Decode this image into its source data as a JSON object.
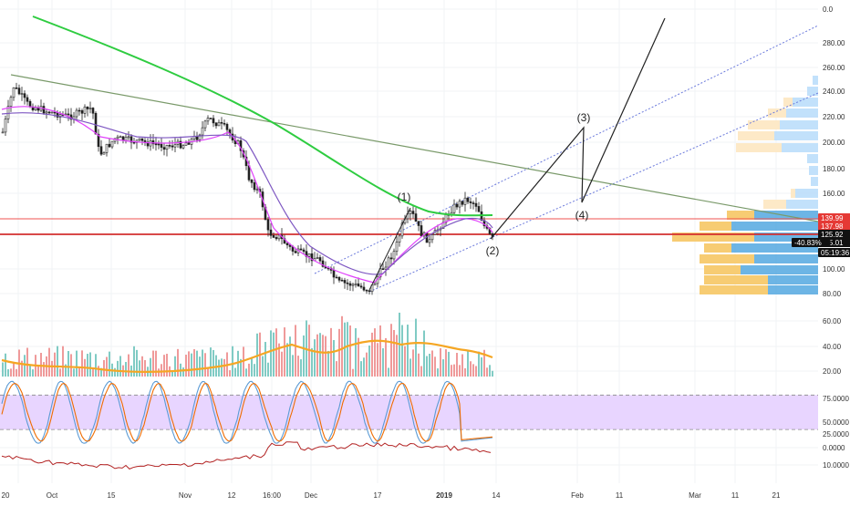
{
  "chart_data": {
    "type": "candlestick",
    "price_axis": {
      "ticks": [
        "0.0",
        "280.00",
        "260.00",
        "240.00",
        "220.00",
        "200.00",
        "180.00",
        "160.00",
        "100.00",
        "80.00"
      ],
      "ylim": [
        80,
        295
      ]
    },
    "volume_axis": {
      "ticks": [
        "60.00",
        "40.00",
        "20.00"
      ]
    },
    "stoch_axis": {
      "ticks": [
        "75.0000",
        "50.0000",
        "25.0000",
        "0.0000"
      ],
      "ylim": [
        0,
        100
      ],
      "band": [
        25,
        75
      ]
    },
    "osc_axis": {
      "ticks": [
        "10.0000"
      ]
    },
    "time_axis": {
      "labels": [
        "20",
        "Oct",
        "15",
        "Nov",
        "12",
        "16:00",
        "Dec",
        "17",
        "2019",
        "14",
        "Feb",
        "11",
        "Mar",
        "11",
        "21"
      ]
    },
    "price_tags": [
      {
        "text": "139.99",
        "color": "#e53935"
      },
      {
        "text": "137.98",
        "color": "#e53935"
      },
      {
        "text": "125.92",
        "color": "#111111"
      },
      {
        "text": "125.01",
        "color": "#111111"
      },
      {
        "text": "-40.83%",
        "color": "#111111"
      },
      {
        "text": "05:19:36",
        "color": "#111111"
      }
    ],
    "horizontal_levels": [
      139.99,
      125.92
    ],
    "wave_labels": [
      "(1)",
      "(2)",
      "(3)",
      "(4)"
    ],
    "series": [
      {
        "color": "#2ecc40",
        "style": "line"
      },
      {
        "color": "#e040fb",
        "style": "line"
      },
      {
        "color": "#7e57c2",
        "style": "line"
      },
      {
        "color": "#f5a623",
        "style": "volume-ma"
      },
      {
        "color": "#5b9bd5",
        "style": "stoch-k"
      },
      {
        "color": "#ef6c00",
        "style": "stoch-d"
      },
      {
        "color": "#b22222",
        "style": "oscillator"
      }
    ],
    "grid": true
  }
}
